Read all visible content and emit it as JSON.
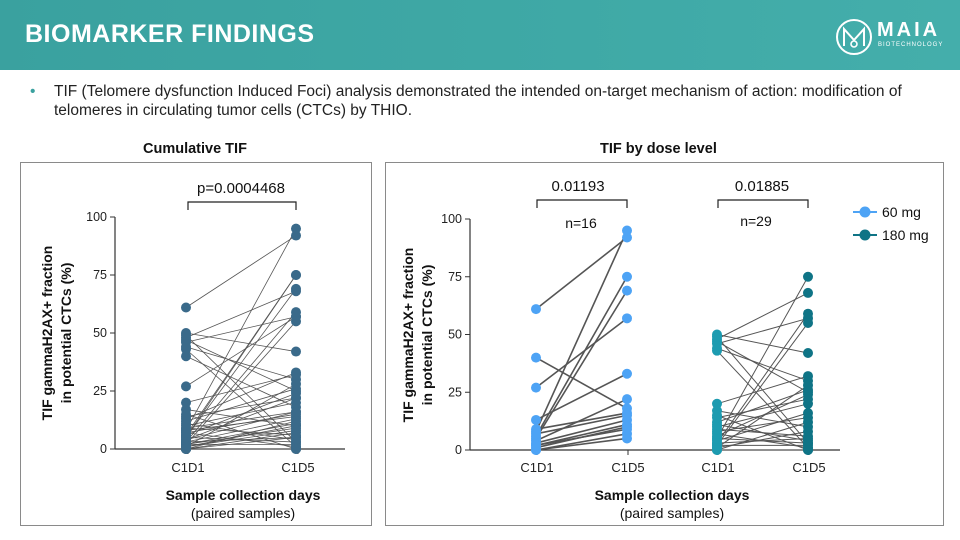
{
  "header": {
    "title": "BIOMARKER FINDINGS",
    "logo_text": "MAIA",
    "logo_subtext": "BIOTECHNOLOGY"
  },
  "bullet": {
    "text": "TIF (Telomere dysfunction Induced Foci) analysis demonstrated the intended on-target mechanism of action: modification of telomeres in circulating tumor cells (CTCs) by THIO."
  },
  "colors": {
    "header": "#3fa9a6",
    "cumulative": "#3a6a8a",
    "dose_60": "#4da3f5",
    "dose_180_c1d1": "#1d9bb0",
    "dose_180_c1d5": "#0f7486",
    "lines": "#555555"
  },
  "chart_data": [
    {
      "type": "line",
      "title": "Cumulative TIF",
      "ylabel_line1": "TIF gammaH2AX+ fraction",
      "ylabel_line2": "in potential CTCs (%)",
      "xlabel": "Sample collection days",
      "xlabel_sub": "(paired samples)",
      "categories": [
        "C1D1",
        "C1D5"
      ],
      "ylim": [
        0,
        100
      ],
      "yticks": [
        "0",
        "25",
        "50",
        "75",
        "100"
      ],
      "annotation": "p=0.0004468",
      "pairs": [
        [
          61,
          92
        ],
        [
          40,
          18
        ],
        [
          27,
          57
        ],
        [
          13,
          33
        ],
        [
          8,
          95
        ],
        [
          6,
          75
        ],
        [
          5,
          69
        ],
        [
          4,
          22
        ],
        [
          9,
          16
        ],
        [
          3,
          13
        ],
        [
          2,
          11
        ],
        [
          1,
          10
        ],
        [
          0,
          7
        ],
        [
          7,
          15
        ],
        [
          0,
          5
        ],
        [
          2,
          9
        ],
        [
          48,
          68
        ],
        [
          46,
          57
        ],
        [
          50,
          42
        ],
        [
          43,
          1
        ],
        [
          47,
          25
        ],
        [
          44,
          30
        ],
        [
          49,
          3
        ],
        [
          5,
          75
        ],
        [
          3,
          59
        ],
        [
          2,
          55
        ],
        [
          20,
          32
        ],
        [
          17,
          10
        ],
        [
          15,
          0
        ],
        [
          12,
          26
        ],
        [
          10,
          20
        ],
        [
          8,
          14
        ],
        [
          6,
          24
        ],
        [
          4,
          16
        ],
        [
          3,
          5
        ],
        [
          1,
          8
        ],
        [
          0,
          12
        ],
        [
          2,
          2
        ],
        [
          1,
          28
        ],
        [
          0,
          0
        ],
        [
          5,
          3
        ],
        [
          7,
          1
        ],
        [
          9,
          6
        ],
        [
          11,
          4
        ],
        [
          14,
          22
        ]
      ]
    },
    {
      "type": "line",
      "title": "TIF by dose level",
      "ylabel_line1": "TIF gammaH2AX+ fraction",
      "ylabel_line2": "in potential CTCs (%)",
      "xlabel": "Sample collection days",
      "xlabel_sub": "(paired samples)",
      "categories": [
        "C1D1",
        "C1D5",
        "C1D1",
        "C1D5"
      ],
      "ylim": [
        0,
        100
      ],
      "yticks": [
        "0",
        "25",
        "50",
        "75",
        "100"
      ],
      "legend_position": "right",
      "series": [
        {
          "name": "60 mg",
          "p_value": "0.01193",
          "n_label": "n=16",
          "pairs": [
            [
              61,
              92
            ],
            [
              40,
              18
            ],
            [
              27,
              57
            ],
            [
              13,
              33
            ],
            [
              8,
              95
            ],
            [
              6,
              75
            ],
            [
              5,
              69
            ],
            [
              4,
              22
            ],
            [
              9,
              16
            ],
            [
              3,
              13
            ],
            [
              2,
              11
            ],
            [
              1,
              10
            ],
            [
              0,
              7
            ],
            [
              7,
              15
            ],
            [
              0,
              5
            ],
            [
              2,
              9
            ]
          ]
        },
        {
          "name": "180 mg",
          "p_value": "0.01885",
          "n_label": "n=29",
          "pairs": [
            [
              48,
              68
            ],
            [
              46,
              57
            ],
            [
              50,
              42
            ],
            [
              43,
              1
            ],
            [
              47,
              25
            ],
            [
              44,
              30
            ],
            [
              49,
              3
            ],
            [
              5,
              75
            ],
            [
              3,
              59
            ],
            [
              2,
              55
            ],
            [
              20,
              32
            ],
            [
              17,
              10
            ],
            [
              15,
              0
            ],
            [
              12,
              26
            ],
            [
              10,
              20
            ],
            [
              8,
              14
            ],
            [
              6,
              24
            ],
            [
              4,
              16
            ],
            [
              3,
              5
            ],
            [
              1,
              8
            ],
            [
              0,
              12
            ],
            [
              2,
              2
            ],
            [
              1,
              28
            ],
            [
              0,
              0
            ],
            [
              5,
              3
            ],
            [
              7,
              1
            ],
            [
              9,
              6
            ],
            [
              11,
              4
            ],
            [
              14,
              22
            ]
          ]
        }
      ]
    }
  ]
}
